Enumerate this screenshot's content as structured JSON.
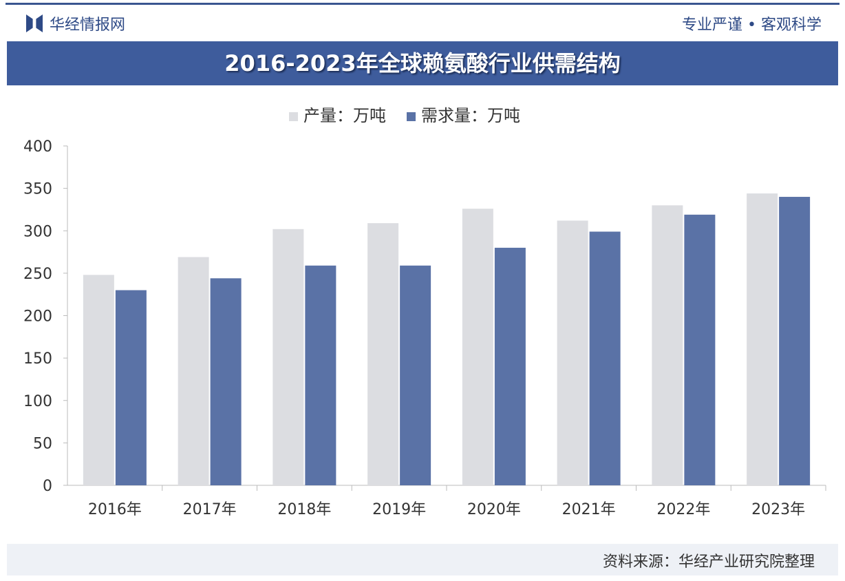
{
  "header": {
    "logo": "华经情报网",
    "slogan": "专业严谨 • 客观科学"
  },
  "chart_data": {
    "type": "bar",
    "title": "2016-2023年全球赖氨酸行业供需结构",
    "categories": [
      "2016年",
      "2017年",
      "2018年",
      "2019年",
      "2020年",
      "2021年",
      "2022年",
      "2023年"
    ],
    "series": [
      {
        "name": "产量：万吨",
        "color": "#dcdde1",
        "values": [
          248,
          269,
          302,
          309,
          326,
          312,
          330,
          344
        ]
      },
      {
        "name": "需求量：万吨",
        "color": "#5a72a6",
        "values": [
          230,
          244,
          259,
          259,
          280,
          299,
          319,
          340
        ]
      }
    ],
    "ylim": [
      0,
      400
    ],
    "yticks": [
      "0",
      "50",
      "100",
      "150",
      "200",
      "250",
      "300",
      "350",
      "400"
    ],
    "legend": "top-center",
    "grid": false
  },
  "footer": {
    "source": "资料来源：华经产业研究院整理"
  }
}
